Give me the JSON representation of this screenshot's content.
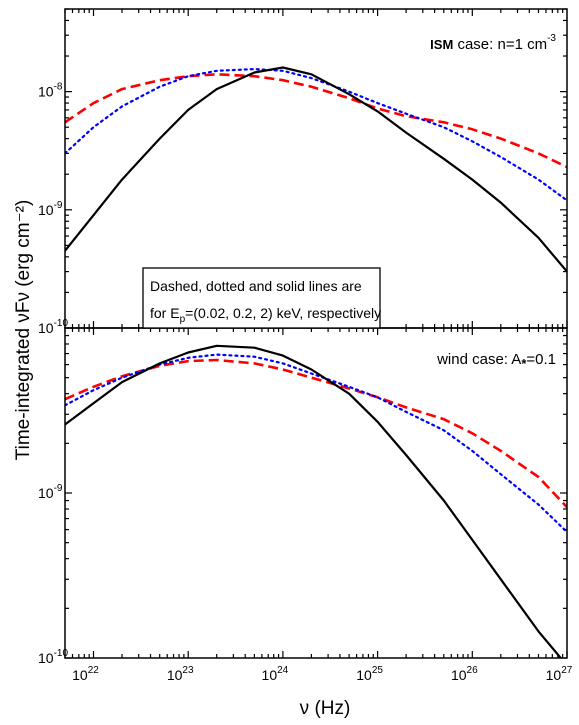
{
  "chart_data": {
    "type": "line",
    "x_scale": "log",
    "y_scale": "log",
    "xlim": [
      5e+21,
      1e+27
    ],
    "xlabel": "ν (Hz)",
    "ylabel": "Time-integrated νFν (erg cm⁻²)",
    "x_ticks": [
      "10^22",
      "10^23",
      "10^24",
      "10^25",
      "10^26",
      "10^27"
    ],
    "note": {
      "line1": "Dashed, dotted and solid lines are",
      "line2_prefix": "for E",
      "line2_sub": "p",
      "line2_suffix": "=(0.02, 0.2, 2) keV, respectively"
    },
    "series_styles": [
      {
        "key": "dashed",
        "ep_keV": 0.02,
        "color": "#ff0000",
        "dash": "10,5",
        "width": 2.6
      },
      {
        "key": "dotted",
        "ep_keV": 0.2,
        "color": "#0000ff",
        "dash": "2,4",
        "width": 2.2
      },
      {
        "key": "solid",
        "ep_keV": 2,
        "color": "#000000",
        "dash": "",
        "width": 2.2
      }
    ],
    "panels": [
      {
        "id": "ism",
        "label_bold": "ISM",
        "label_rest": " case: n=1 cm",
        "label_sup": "-3",
        "ylim": [
          1e-10,
          5e-08
        ],
        "y_ticks": [
          {
            "base": "10",
            "exp": "-10",
            "value": 1e-10
          },
          {
            "base": "10",
            "exp": "-9",
            "value": 1e-09
          },
          {
            "base": "10",
            "exp": "-8",
            "value": 1e-08
          }
        ],
        "series": {
          "dashed": {
            "x": [
              5e+21,
              1e+22,
              2e+22,
              5e+22,
              1e+23,
              2e+23,
              5e+23,
              1e+24,
              2e+24,
              5e+24,
              1e+25,
              2e+25,
              5e+25,
              1e+26,
              2e+26,
              5e+26,
              1e+27
            ],
            "y": [
              5.5e-09,
              8e-09,
              1.05e-08,
              1.25e-08,
              1.35e-08,
              1.4e-08,
              1.35e-08,
              1.25e-08,
              1.1e-08,
              8.8e-09,
              7.2e-09,
              6.2e-09,
              5.5e-09,
              4.8e-09,
              4e-09,
              3e-09,
              2.3e-09
            ]
          },
          "dotted": {
            "x": [
              5e+21,
              1e+22,
              2e+22,
              5e+22,
              1e+23,
              2e+23,
              5e+23,
              1e+24,
              2e+24,
              5e+24,
              1e+25,
              2e+25,
              5e+25,
              1e+26,
              2e+26,
              5e+26,
              1e+27
            ],
            "y": [
              3e-09,
              5e-09,
              7.5e-09,
              1.1e-08,
              1.35e-08,
              1.5e-08,
              1.55e-08,
              1.5e-08,
              1.3e-08,
              1e-08,
              8e-09,
              6.5e-09,
              5e-09,
              3.8e-09,
              2.8e-09,
              1.8e-09,
              1.2e-09
            ]
          },
          "solid": {
            "x": [
              5e+21,
              1e+22,
              2e+22,
              5e+22,
              1e+23,
              2e+23,
              5e+23,
              1e+24,
              2e+24,
              5e+24,
              1e+25,
              2e+25,
              5e+25,
              1e+26,
              2e+26,
              5e+26,
              1e+27
            ],
            "y": [
              4.5e-10,
              9e-10,
              1.8e-09,
              4e-09,
              7e-09,
              1.05e-08,
              1.45e-08,
              1.6e-08,
              1.4e-08,
              9.5e-09,
              6.8e-09,
              4.5e-09,
              2.7e-09,
              1.8e-09,
              1.15e-09,
              5.8e-10,
              3e-10
            ]
          }
        }
      },
      {
        "id": "wind",
        "label_bold": "",
        "label_rest": "wind case: A",
        "label_sub": "*",
        "label_after": "=0.1",
        "ylim": [
          1e-10,
          1e-08
        ],
        "y_ticks": [
          {
            "base": "10",
            "exp": "-10",
            "value": 1e-10
          },
          {
            "base": "10",
            "exp": "-9",
            "value": 1e-09
          }
        ],
        "series": {
          "dashed": {
            "x": [
              5e+21,
              1e+22,
              2e+22,
              5e+22,
              1e+23,
              2e+23,
              5e+23,
              1e+24,
              2e+24,
              5e+24,
              1e+25,
              2e+25,
              5e+25,
              1e+26,
              2e+26,
              5e+26,
              1e+27
            ],
            "y": [
              3.7e-09,
              4.4e-09,
              5.1e-09,
              5.9e-09,
              6.3e-09,
              6.4e-09,
              6.1e-09,
              5.6e-09,
              5e-09,
              4.3e-09,
              3.8e-09,
              3.3e-09,
              2.8e-09,
              2.3e-09,
              1.8e-09,
              1.25e-09,
              8.2e-10
            ]
          },
          "dotted": {
            "x": [
              5e+21,
              1e+22,
              2e+22,
              5e+22,
              1e+23,
              2e+23,
              5e+23,
              1e+24,
              2e+24,
              5e+24,
              1e+25,
              2e+25,
              5e+25,
              1e+26,
              2e+26,
              5e+26,
              1e+27
            ],
            "y": [
              3.4e-09,
              4.2e-09,
              5e-09,
              6e-09,
              6.6e-09,
              6.9e-09,
              6.7e-09,
              6.1e-09,
              5.3e-09,
              4.4e-09,
              3.8e-09,
              3.1e-09,
              2.4e-09,
              1.8e-09,
              1.3e-09,
              8.5e-10,
              5.8e-10
            ]
          },
          "solid": {
            "x": [
              5e+21,
              1e+22,
              2e+22,
              5e+22,
              1e+23,
              2e+23,
              5e+23,
              1e+24,
              2e+24,
              5e+24,
              1e+25,
              2e+25,
              5e+25,
              1e+26,
              2e+26,
              5e+26,
              1e+27
            ],
            "y": [
              2.6e-09,
              3.5e-09,
              4.7e-09,
              6.1e-09,
              7.1e-09,
              7.8e-09,
              7.6e-09,
              6.8e-09,
              5.6e-09,
              4e-09,
              2.7e-09,
              1.7e-09,
              9e-10,
              5.2e-10,
              3e-10,
              1.45e-10,
              9e-11
            ]
          }
        }
      }
    ]
  }
}
